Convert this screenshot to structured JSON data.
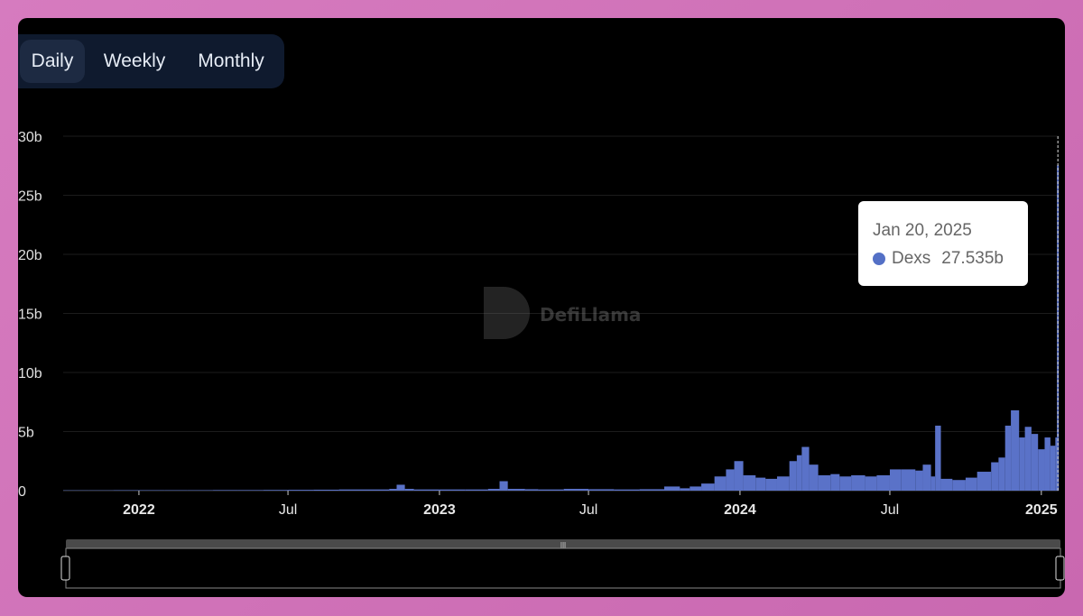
{
  "toggle": {
    "options": [
      "Daily",
      "Weekly",
      "Monthly"
    ],
    "selected": "Daily"
  },
  "watermark": "DefiLlama",
  "tooltip": {
    "date": "Jan 20, 2025",
    "series": "Dexs",
    "value": "27.535b"
  },
  "colors": {
    "series": "#5a72c8",
    "tooltip_dot": "#5470c6",
    "background": "#000000",
    "toggle_bg": "#0f1a2e"
  },
  "chart_data": {
    "type": "bar",
    "title": "",
    "xlabel": "",
    "ylabel": "",
    "ylim": [
      0,
      30
    ],
    "unit": "b",
    "yticks": [
      "0",
      "5b",
      "10b",
      "15b",
      "20b",
      "25b",
      "30b"
    ],
    "xticks": [
      {
        "label": "2022",
        "date": "2022-01-01",
        "bold": true
      },
      {
        "label": "Jul",
        "date": "2022-07-01",
        "bold": false
      },
      {
        "label": "2023",
        "date": "2023-01-01",
        "bold": true
      },
      {
        "label": "Jul",
        "date": "2023-07-01",
        "bold": false
      },
      {
        "label": "2024",
        "date": "2024-01-01",
        "bold": true
      },
      {
        "label": "Jul",
        "date": "2024-07-01",
        "bold": false
      },
      {
        "label": "2025",
        "date": "2025-01-01",
        "bold": true
      }
    ],
    "xrange": [
      "2021-10-01",
      "2025-01-22"
    ],
    "grid": true,
    "series": [
      {
        "name": "Dexs",
        "points": [
          [
            "2021-10-01",
            0.03
          ],
          [
            "2021-11-01",
            0.03
          ],
          [
            "2021-12-01",
            0.04
          ],
          [
            "2022-01-01",
            0.04
          ],
          [
            "2022-02-01",
            0.04
          ],
          [
            "2022-03-01",
            0.04
          ],
          [
            "2022-04-01",
            0.05
          ],
          [
            "2022-05-01",
            0.05
          ],
          [
            "2022-06-01",
            0.06
          ],
          [
            "2022-07-01",
            0.07
          ],
          [
            "2022-08-01",
            0.08
          ],
          [
            "2022-09-01",
            0.1
          ],
          [
            "2022-10-01",
            0.1
          ],
          [
            "2022-11-01",
            0.15
          ],
          [
            "2022-11-10",
            0.5
          ],
          [
            "2022-11-20",
            0.15
          ],
          [
            "2022-12-01",
            0.1
          ],
          [
            "2023-01-01",
            0.1
          ],
          [
            "2023-02-01",
            0.1
          ],
          [
            "2023-03-01",
            0.15
          ],
          [
            "2023-03-15",
            0.8
          ],
          [
            "2023-03-25",
            0.15
          ],
          [
            "2023-04-15",
            0.12
          ],
          [
            "2023-05-01",
            0.1
          ],
          [
            "2023-06-01",
            0.15
          ],
          [
            "2023-07-01",
            0.12
          ],
          [
            "2023-08-01",
            0.1
          ],
          [
            "2023-09-01",
            0.12
          ],
          [
            "2023-10-01",
            0.35
          ],
          [
            "2023-10-20",
            0.2
          ],
          [
            "2023-11-01",
            0.35
          ],
          [
            "2023-11-15",
            0.6
          ],
          [
            "2023-12-01",
            1.2
          ],
          [
            "2023-12-15",
            1.8
          ],
          [
            "2023-12-25",
            2.5
          ],
          [
            "2024-01-05",
            1.3
          ],
          [
            "2024-01-20",
            1.1
          ],
          [
            "2024-02-01",
            1.0
          ],
          [
            "2024-02-15",
            1.2
          ],
          [
            "2024-03-01",
            2.5
          ],
          [
            "2024-03-10",
            3.0
          ],
          [
            "2024-03-16",
            3.7
          ],
          [
            "2024-03-25",
            2.2
          ],
          [
            "2024-04-05",
            1.3
          ],
          [
            "2024-04-20",
            1.4
          ],
          [
            "2024-05-01",
            1.2
          ],
          [
            "2024-05-15",
            1.3
          ],
          [
            "2024-06-01",
            1.2
          ],
          [
            "2024-06-15",
            1.3
          ],
          [
            "2024-07-01",
            1.8
          ],
          [
            "2024-07-15",
            1.8
          ],
          [
            "2024-08-01",
            1.7
          ],
          [
            "2024-08-10",
            2.2
          ],
          [
            "2024-08-20",
            1.2
          ],
          [
            "2024-08-25",
            5.5
          ],
          [
            "2024-09-01",
            1.0
          ],
          [
            "2024-09-15",
            0.9
          ],
          [
            "2024-10-01",
            1.1
          ],
          [
            "2024-10-15",
            1.6
          ],
          [
            "2024-11-01",
            2.4
          ],
          [
            "2024-11-10",
            2.8
          ],
          [
            "2024-11-18",
            5.5
          ],
          [
            "2024-11-25",
            6.8
          ],
          [
            "2024-12-05",
            4.5
          ],
          [
            "2024-12-12",
            5.4
          ],
          [
            "2024-12-20",
            4.8
          ],
          [
            "2024-12-28",
            3.5
          ],
          [
            "2025-01-05",
            4.5
          ],
          [
            "2025-01-12",
            3.8
          ],
          [
            "2025-01-18",
            4.5
          ],
          [
            "2025-01-20",
            27.535
          ]
        ]
      }
    ],
    "highlight": {
      "date": "2025-01-20",
      "value": 27.535
    }
  }
}
